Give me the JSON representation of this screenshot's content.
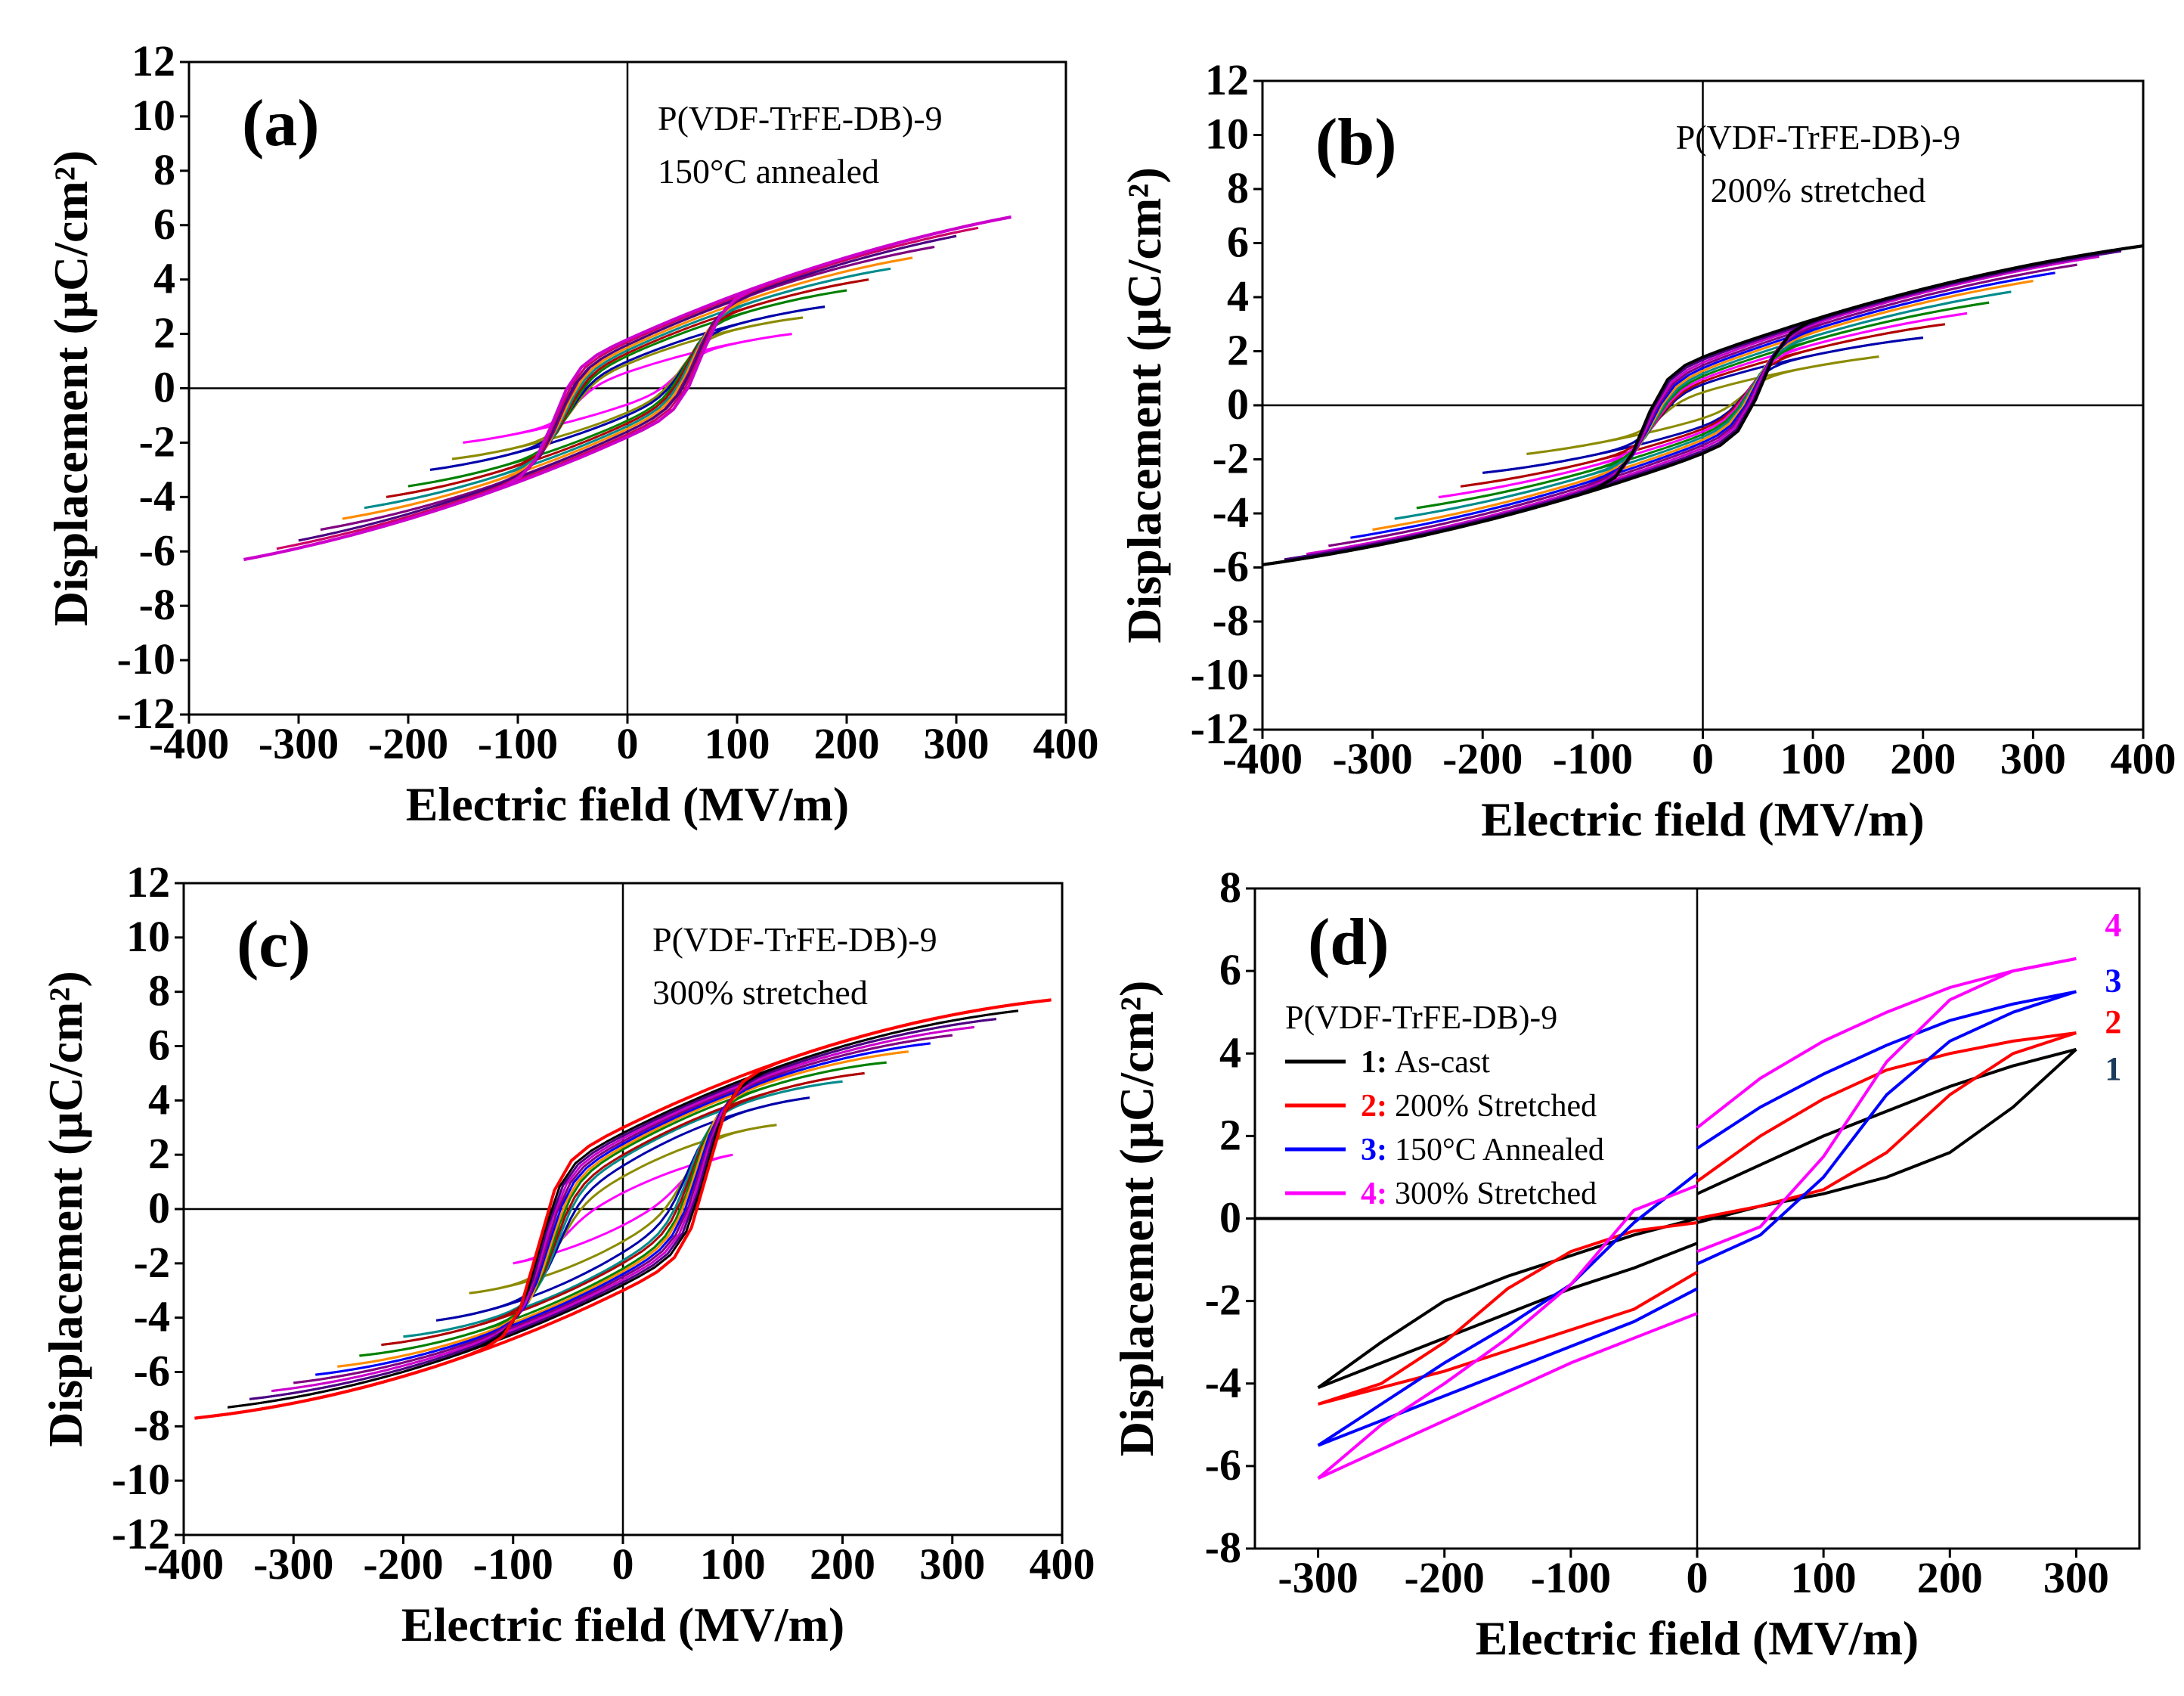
{
  "figure": {
    "shared_annotation": "P(VDF-TrFE-DB)-9"
  },
  "chart_data": [
    {
      "id": "a",
      "type": "line",
      "panel_label": "(a)",
      "annotation_lines": [
        "P(VDF-TrFE-DB)-9",
        "150°C annealed"
      ],
      "xlabel": "Electric field (MV/m)",
      "ylabel": "Displacement (μC/cm²)",
      "xlim": [
        -400,
        400
      ],
      "ylim": [
        -12,
        12
      ],
      "xticks": [
        -400,
        -300,
        -200,
        -100,
        0,
        100,
        200,
        300,
        400
      ],
      "yticks": [
        -12,
        -10,
        -8,
        -6,
        -4,
        -2,
        0,
        2,
        4,
        6,
        8,
        10,
        12
      ],
      "loop_model": {
        "Emax": [
          150,
          160,
          180,
          200,
          220,
          240,
          260,
          280,
          300,
          320,
          350
        ],
        "Dmax": [
          2.0,
          2.6,
          3.0,
          3.6,
          4.0,
          4.4,
          4.8,
          5.2,
          5.6,
          5.9,
          6.3
        ],
        "Pr": [
          0.6,
          0.9,
          1.0,
          1.2,
          1.3,
          1.4,
          1.5,
          1.6,
          1.6,
          1.7,
          1.8
        ],
        "Ec": 70,
        "split_at_zero": true
      },
      "series": [
        {
          "name": "150 MV/m",
          "color": "#ff00ff"
        },
        {
          "name": "160 MV/m",
          "color": "#8b8b00"
        },
        {
          "name": "180 MV/m",
          "color": "#0000aa"
        },
        {
          "name": "200 MV/m",
          "color": "#008000"
        },
        {
          "name": "220 MV/m",
          "color": "#b00000"
        },
        {
          "name": "240 MV/m",
          "color": "#008b8b"
        },
        {
          "name": "260 MV/m",
          "color": "#ff8c00"
        },
        {
          "name": "280 MV/m",
          "color": "#800080"
        },
        {
          "name": "300 MV/m",
          "color": "#4b0082"
        },
        {
          "name": "320 MV/m",
          "color": "#cc0066"
        },
        {
          "name": "350 MV/m",
          "color": "#cc00cc"
        }
      ]
    },
    {
      "id": "b",
      "type": "line",
      "panel_label": "(b)",
      "annotation_lines": [
        "P(VDF-TrFE-DB)-9",
        "200% stretched"
      ],
      "xlabel": "Electric field (MV/m)",
      "ylabel": "Displacement (μC/cm²)",
      "xlim": [
        -400,
        400
      ],
      "ylim": [
        -12,
        12
      ],
      "xticks": [
        -400,
        -300,
        -200,
        -100,
        0,
        100,
        200,
        300,
        400
      ],
      "yticks": [
        -12,
        -10,
        -8,
        -6,
        -4,
        -2,
        0,
        2,
        4,
        6,
        8,
        10,
        12
      ],
      "loop_model": {
        "Emax": [
          160,
          200,
          220,
          240,
          260,
          280,
          300,
          320,
          340,
          360,
          380,
          400
        ],
        "Dmax": [
          1.8,
          2.5,
          3.0,
          3.4,
          3.8,
          4.2,
          4.6,
          4.9,
          5.2,
          5.5,
          5.7,
          5.9
        ],
        "Pr": [
          0.5,
          0.8,
          0.9,
          1.0,
          1.1,
          1.2,
          1.3,
          1.4,
          1.5,
          1.6,
          1.7,
          1.8
        ],
        "Ec": 55,
        "split_at_zero": true
      },
      "series": [
        {
          "name": "160 MV/m",
          "color": "#8b8b00"
        },
        {
          "name": "200 MV/m",
          "color": "#0000aa"
        },
        {
          "name": "220 MV/m",
          "color": "#b00000"
        },
        {
          "name": "240 MV/m",
          "color": "#ff00ff"
        },
        {
          "name": "260 MV/m",
          "color": "#008000"
        },
        {
          "name": "280 MV/m",
          "color": "#008b8b"
        },
        {
          "name": "300 MV/m",
          "color": "#ff8c00"
        },
        {
          "name": "320 MV/m",
          "color": "#0000ff"
        },
        {
          "name": "340 MV/m",
          "color": "#800080"
        },
        {
          "name": "360 MV/m",
          "color": "#cc00cc"
        },
        {
          "name": "380 MV/m",
          "color": "#4b0082"
        },
        {
          "name": "400 MV/m",
          "color": "#000000"
        }
      ]
    },
    {
      "id": "c",
      "type": "line",
      "panel_label": "(c)",
      "annotation_lines": [
        "P(VDF-TrFE-DB)-9",
        "300% stretched"
      ],
      "xlabel": "Electric field (MV/m)",
      "ylabel": "Displacement (μC/cm²)",
      "xlim": [
        -400,
        400
      ],
      "ylim": [
        -12,
        12
      ],
      "xticks": [
        -400,
        -300,
        -200,
        -100,
        0,
        100,
        200,
        300,
        400
      ],
      "yticks": [
        -12,
        -10,
        -8,
        -6,
        -4,
        -2,
        0,
        2,
        4,
        6,
        8,
        10,
        12
      ],
      "loop_model": {
        "Emax": [
          100,
          140,
          170,
          200,
          220,
          240,
          260,
          280,
          300,
          320,
          340,
          360,
          390
        ],
        "Dmax": [
          2.0,
          3.1,
          4.1,
          4.7,
          5.0,
          5.4,
          5.8,
          6.1,
          6.4,
          6.7,
          7.0,
          7.3,
          7.7
        ],
        "Pr": [
          0.6,
          1.2,
          1.6,
          1.9,
          2.0,
          2.2,
          2.3,
          2.4,
          2.5,
          2.6,
          2.7,
          2.8,
          3.0
        ],
        "Ec": 80,
        "split_at_zero": true
      },
      "series": [
        {
          "name": "100 MV/m",
          "color": "#ff00ff"
        },
        {
          "name": "140 MV/m",
          "color": "#8b8b00"
        },
        {
          "name": "170 MV/m",
          "color": "#0000aa"
        },
        {
          "name": "200 MV/m",
          "color": "#008b8b"
        },
        {
          "name": "220 MV/m",
          "color": "#b00000"
        },
        {
          "name": "240 MV/m",
          "color": "#008000"
        },
        {
          "name": "260 MV/m",
          "color": "#ff8c00"
        },
        {
          "name": "280 MV/m",
          "color": "#0000ff"
        },
        {
          "name": "300 MV/m",
          "color": "#800080"
        },
        {
          "name": "320 MV/m",
          "color": "#cc00cc"
        },
        {
          "name": "340 MV/m",
          "color": "#4b0082"
        },
        {
          "name": "360 MV/m",
          "color": "#000000"
        },
        {
          "name": "390 MV/m",
          "color": "#ff0000"
        }
      ]
    },
    {
      "id": "d",
      "type": "line",
      "panel_label": "(d)",
      "legend_title": "P(VDF-TrFE-DB)-9",
      "legend_position": "upper-left",
      "xlabel": "Electric field (MV/m)",
      "ylabel": "Displacement (μC/cm²)",
      "xlim": [
        -350,
        350
      ],
      "ylim": [
        -8,
        8
      ],
      "xticks": [
        -300,
        -200,
        -100,
        0,
        100,
        200,
        300
      ],
      "yticks": [
        -8,
        -6,
        -4,
        -2,
        0,
        2,
        4,
        6,
        8
      ],
      "series": [
        {
          "id": "1",
          "name": "As-cast",
          "legend_number": "1:",
          "end_label": "1",
          "color": "#000000",
          "upper": [
            [
              -300,
              -4.1
            ],
            [
              -250,
              -3.5
            ],
            [
              -200,
              -2.9
            ],
            [
              -150,
              -2.3
            ],
            [
              -100,
              -1.7
            ],
            [
              -50,
              -1.2
            ],
            [
              0,
              -0.6
            ]
          ],
          "lower": [
            [
              0,
              -0.1
            ],
            [
              50,
              0.3
            ],
            [
              100,
              0.6
            ],
            [
              150,
              1.0
            ],
            [
              200,
              1.6
            ],
            [
              250,
              2.7
            ],
            [
              300,
              4.1
            ]
          ],
          "upper_pos": [
            [
              0,
              0.6
            ],
            [
              50,
              1.3
            ],
            [
              100,
              2.0
            ],
            [
              150,
              2.6
            ],
            [
              200,
              3.2
            ],
            [
              250,
              3.7
            ],
            [
              300,
              4.1
            ]
          ],
          "lower_neg": [
            [
              -300,
              -4.1
            ],
            [
              -250,
              -3.0
            ],
            [
              -200,
              -2.0
            ],
            [
              -150,
              -1.4
            ],
            [
              -100,
              -0.9
            ],
            [
              -50,
              -0.4
            ],
            [
              0,
              0.0
            ]
          ]
        },
        {
          "id": "2",
          "name": "200% Stretched",
          "legend_number": "2:",
          "end_label": "2",
          "color": "#ff0000",
          "upper": [
            [
              -300,
              -4.5
            ],
            [
              -250,
              -4.1
            ],
            [
              -200,
              -3.7
            ],
            [
              -150,
              -3.2
            ],
            [
              -100,
              -2.7
            ],
            [
              -50,
              -2.2
            ],
            [
              0,
              -1.3
            ]
          ],
          "lower": [
            [
              0,
              0.0
            ],
            [
              50,
              0.3
            ],
            [
              100,
              0.7
            ],
            [
              150,
              1.6
            ],
            [
              200,
              3.0
            ],
            [
              250,
              4.0
            ],
            [
              300,
              4.5
            ]
          ],
          "upper_pos": [
            [
              0,
              0.9
            ],
            [
              50,
              2.0
            ],
            [
              100,
              2.9
            ],
            [
              150,
              3.6
            ],
            [
              200,
              4.0
            ],
            [
              250,
              4.3
            ],
            [
              300,
              4.5
            ]
          ],
          "lower_neg": [
            [
              -300,
              -4.5
            ],
            [
              -250,
              -4.0
            ],
            [
              -200,
              -3.0
            ],
            [
              -150,
              -1.7
            ],
            [
              -100,
              -0.8
            ],
            [
              -50,
              -0.3
            ],
            [
              0,
              -0.1
            ]
          ]
        },
        {
          "id": "3",
          "name": "150°C Annealed",
          "legend_number": "3:",
          "end_label": "3",
          "color": "#0000ff",
          "upper": [
            [
              -300,
              -5.5
            ],
            [
              -250,
              -4.9
            ],
            [
              -200,
              -4.3
            ],
            [
              -150,
              -3.7
            ],
            [
              -100,
              -3.1
            ],
            [
              -50,
              -2.5
            ],
            [
              0,
              -1.7
            ]
          ],
          "lower": [
            [
              0,
              -1.1
            ],
            [
              50,
              -0.4
            ],
            [
              100,
              1.0
            ],
            [
              150,
              3.0
            ],
            [
              200,
              4.3
            ],
            [
              250,
              5.0
            ],
            [
              300,
              5.5
            ]
          ],
          "upper_pos": [
            [
              0,
              1.7
            ],
            [
              50,
              2.7
            ],
            [
              100,
              3.5
            ],
            [
              150,
              4.2
            ],
            [
              200,
              4.8
            ],
            [
              250,
              5.2
            ],
            [
              300,
              5.5
            ]
          ],
          "lower_neg": [
            [
              -300,
              -5.5
            ],
            [
              -250,
              -4.5
            ],
            [
              -200,
              -3.5
            ],
            [
              -150,
              -2.6
            ],
            [
              -100,
              -1.6
            ],
            [
              -50,
              -0.1
            ],
            [
              0,
              1.1
            ]
          ]
        },
        {
          "id": "4",
          "name": "300% Stretched",
          "legend_number": "4:",
          "end_label": "4",
          "color": "#ff00ff",
          "upper": [
            [
              -300,
              -6.3
            ],
            [
              -250,
              -5.6
            ],
            [
              -200,
              -4.9
            ],
            [
              -150,
              -4.2
            ],
            [
              -100,
              -3.5
            ],
            [
              -50,
              -2.9
            ],
            [
              0,
              -2.3
            ]
          ],
          "lower": [
            [
              0,
              -0.8
            ],
            [
              50,
              -0.2
            ],
            [
              100,
              1.5
            ],
            [
              150,
              3.8
            ],
            [
              200,
              5.3
            ],
            [
              250,
              6.0
            ],
            [
              300,
              6.3
            ]
          ],
          "upper_pos": [
            [
              0,
              2.2
            ],
            [
              50,
              3.4
            ],
            [
              100,
              4.3
            ],
            [
              150,
              5.0
            ],
            [
              200,
              5.6
            ],
            [
              250,
              6.0
            ],
            [
              300,
              6.3
            ]
          ],
          "lower_neg": [
            [
              -300,
              -6.3
            ],
            [
              -250,
              -5.0
            ],
            [
              -200,
              -4.0
            ],
            [
              -150,
              -2.9
            ],
            [
              -100,
              -1.6
            ],
            [
              -50,
              0.2
            ],
            [
              0,
              0.8
            ]
          ]
        }
      ]
    }
  ]
}
